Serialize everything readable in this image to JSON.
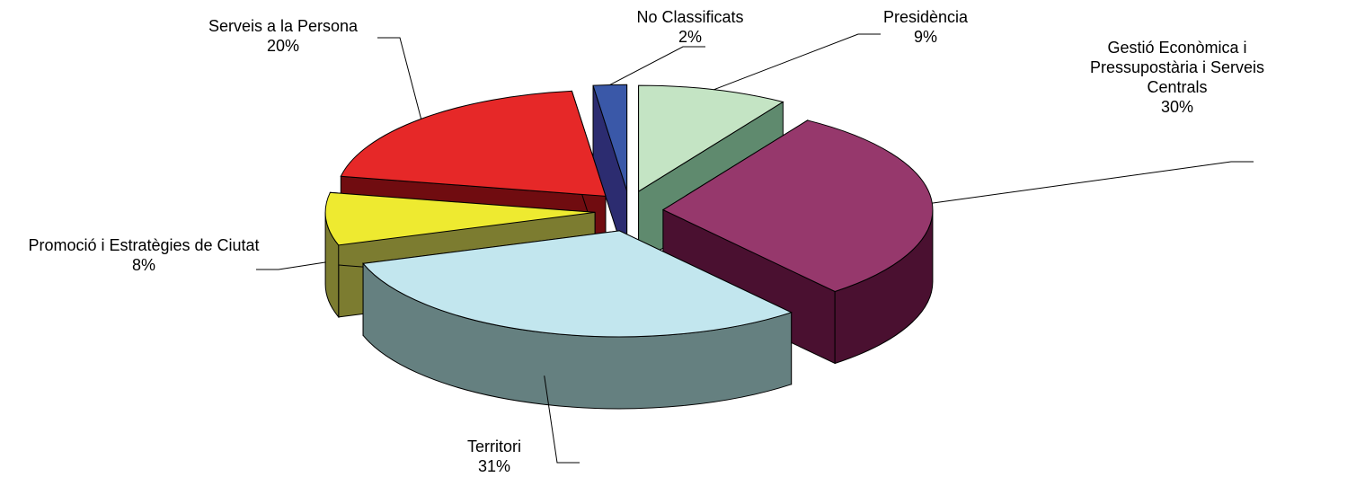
{
  "chart_data": {
    "type": "pie3d",
    "categories": [
      "Presidència",
      "Gestió Econòmica i Pressupostària i Serveis Centrals",
      "Territori",
      "Promoció i Estratègies de Ciutat",
      "Serveis a la Persona",
      "No Classificats"
    ],
    "values": [
      9,
      30,
      31,
      8,
      20,
      2
    ],
    "value_labels": [
      "9%",
      "30%",
      "31%",
      "8%",
      "20%",
      "2%"
    ],
    "colors": [
      "#c4e4c4",
      "#96386c",
      "#c2e6ee",
      "#eeea30",
      "#e62828",
      "#3a58a8"
    ],
    "side_colors": [
      "#5f8a6e",
      "#4a1030",
      "#658080",
      "#7c7c30",
      "#700c10",
      "#2c2c70"
    ]
  }
}
